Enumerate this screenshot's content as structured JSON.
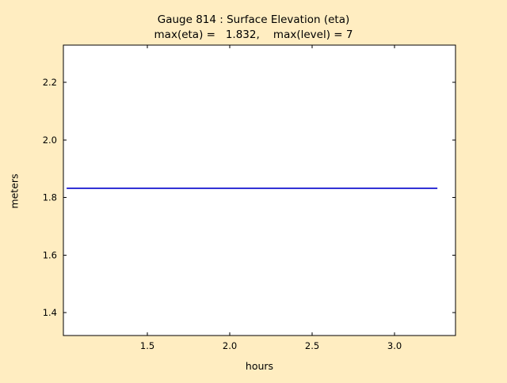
{
  "figure": {
    "background_color": "#ffedc1",
    "plot_background_color": "#ffffff",
    "axes_edge_color": "#000000"
  },
  "chart_data": {
    "type": "line",
    "title": "Gauge 814 : Surface Elevation (eta)",
    "subtitle": "max(eta) =   1.832,    max(level) = 7",
    "xlabel": "hours",
    "ylabel": "meters",
    "xlim": [
      0.99,
      3.37
    ],
    "ylim": [
      1.32,
      2.33
    ],
    "xticks": [
      1.5,
      2.0,
      2.5,
      3.0
    ],
    "yticks": [
      1.4,
      1.6,
      1.8,
      2.0,
      2.2
    ],
    "grid": false,
    "legend": null,
    "series": [
      {
        "name": "eta",
        "color": "#0000cc",
        "line_width": 1.6,
        "x": [
          1.01,
          3.26
        ],
        "y": [
          1.832,
          1.832
        ]
      }
    ],
    "annotations": {
      "max_eta": 1.832,
      "max_level": 7
    }
  }
}
